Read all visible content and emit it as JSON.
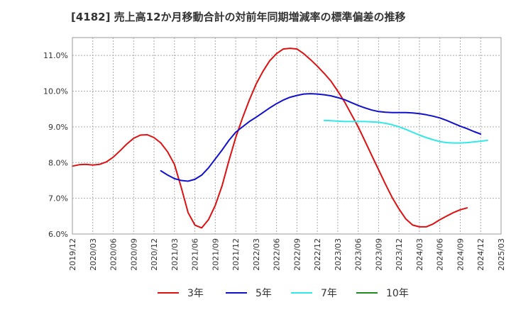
{
  "chart_data": {
    "type": "line",
    "title": "[4182]  売上高12か月移動合計の対前年同期増減率の標準偏差の推移",
    "xlabel": "",
    "ylabel": "",
    "ylim": [
      6.0,
      11.5
    ],
    "y_ticks": [
      6.0,
      7.0,
      8.0,
      9.0,
      10.0,
      11.0
    ],
    "y_tick_labels": [
      "6.0%",
      "7.0%",
      "8.0%",
      "9.0%",
      "10.0%",
      "11.0%"
    ],
    "x_ticks": [
      "2019/12",
      "2020/03",
      "2020/06",
      "2020/09",
      "2020/12",
      "2021/03",
      "2021/06",
      "2021/09",
      "2021/12",
      "2022/03",
      "2022/06",
      "2022/09",
      "2022/12",
      "2023/03",
      "2023/06",
      "2023/09",
      "2023/12",
      "2024/03",
      "2024/06",
      "2024/09",
      "2024/12",
      "2025/03"
    ],
    "grid": true,
    "legend_position": "bottom",
    "series": [
      {
        "name": "3年",
        "color": "#dd1111",
        "start": "2019/12",
        "values": [
          7.9,
          7.94,
          7.95,
          7.93,
          7.95,
          8.02,
          8.15,
          8.33,
          8.52,
          8.68,
          8.77,
          8.78,
          8.7,
          8.55,
          8.3,
          7.95,
          7.3,
          6.6,
          6.25,
          6.17,
          6.4,
          6.8,
          7.35,
          8.05,
          8.7,
          9.25,
          9.75,
          10.2,
          10.55,
          10.85,
          11.05,
          11.18,
          11.2,
          11.18,
          11.05,
          10.88,
          10.7,
          10.5,
          10.28,
          10.0,
          9.7,
          9.35,
          9.0,
          8.6,
          8.2,
          7.8,
          7.4,
          7.02,
          6.7,
          6.42,
          6.25,
          6.2,
          6.2,
          6.28,
          6.4,
          6.5,
          6.6,
          6.68,
          6.73
        ]
      },
      {
        "name": "5年",
        "color": "#1111cc",
        "start": "2021/01",
        "values": [
          7.77,
          7.65,
          7.55,
          7.5,
          7.48,
          7.53,
          7.65,
          7.85,
          8.1,
          8.35,
          8.62,
          8.85,
          9.0,
          9.15,
          9.27,
          9.4,
          9.53,
          9.65,
          9.75,
          9.83,
          9.88,
          9.92,
          9.93,
          9.92,
          9.9,
          9.87,
          9.82,
          9.76,
          9.68,
          9.6,
          9.53,
          9.47,
          9.43,
          9.41,
          9.4,
          9.4,
          9.4,
          9.39,
          9.37,
          9.34,
          9.3,
          9.25,
          9.18,
          9.1,
          9.02,
          8.95,
          8.87,
          8.8
        ]
      },
      {
        "name": "7年",
        "color": "#33e8e8",
        "start": "2023/01",
        "values": [
          9.18,
          9.17,
          9.16,
          9.15,
          9.15,
          9.15,
          9.15,
          9.14,
          9.13,
          9.1,
          9.06,
          9.0,
          8.93,
          8.85,
          8.77,
          8.7,
          8.64,
          8.59,
          8.56,
          8.55,
          8.55,
          8.56,
          8.58,
          8.6,
          8.62
        ]
      },
      {
        "name": "10年",
        "color": "#228822",
        "start": "2024/12",
        "values": []
      }
    ]
  }
}
